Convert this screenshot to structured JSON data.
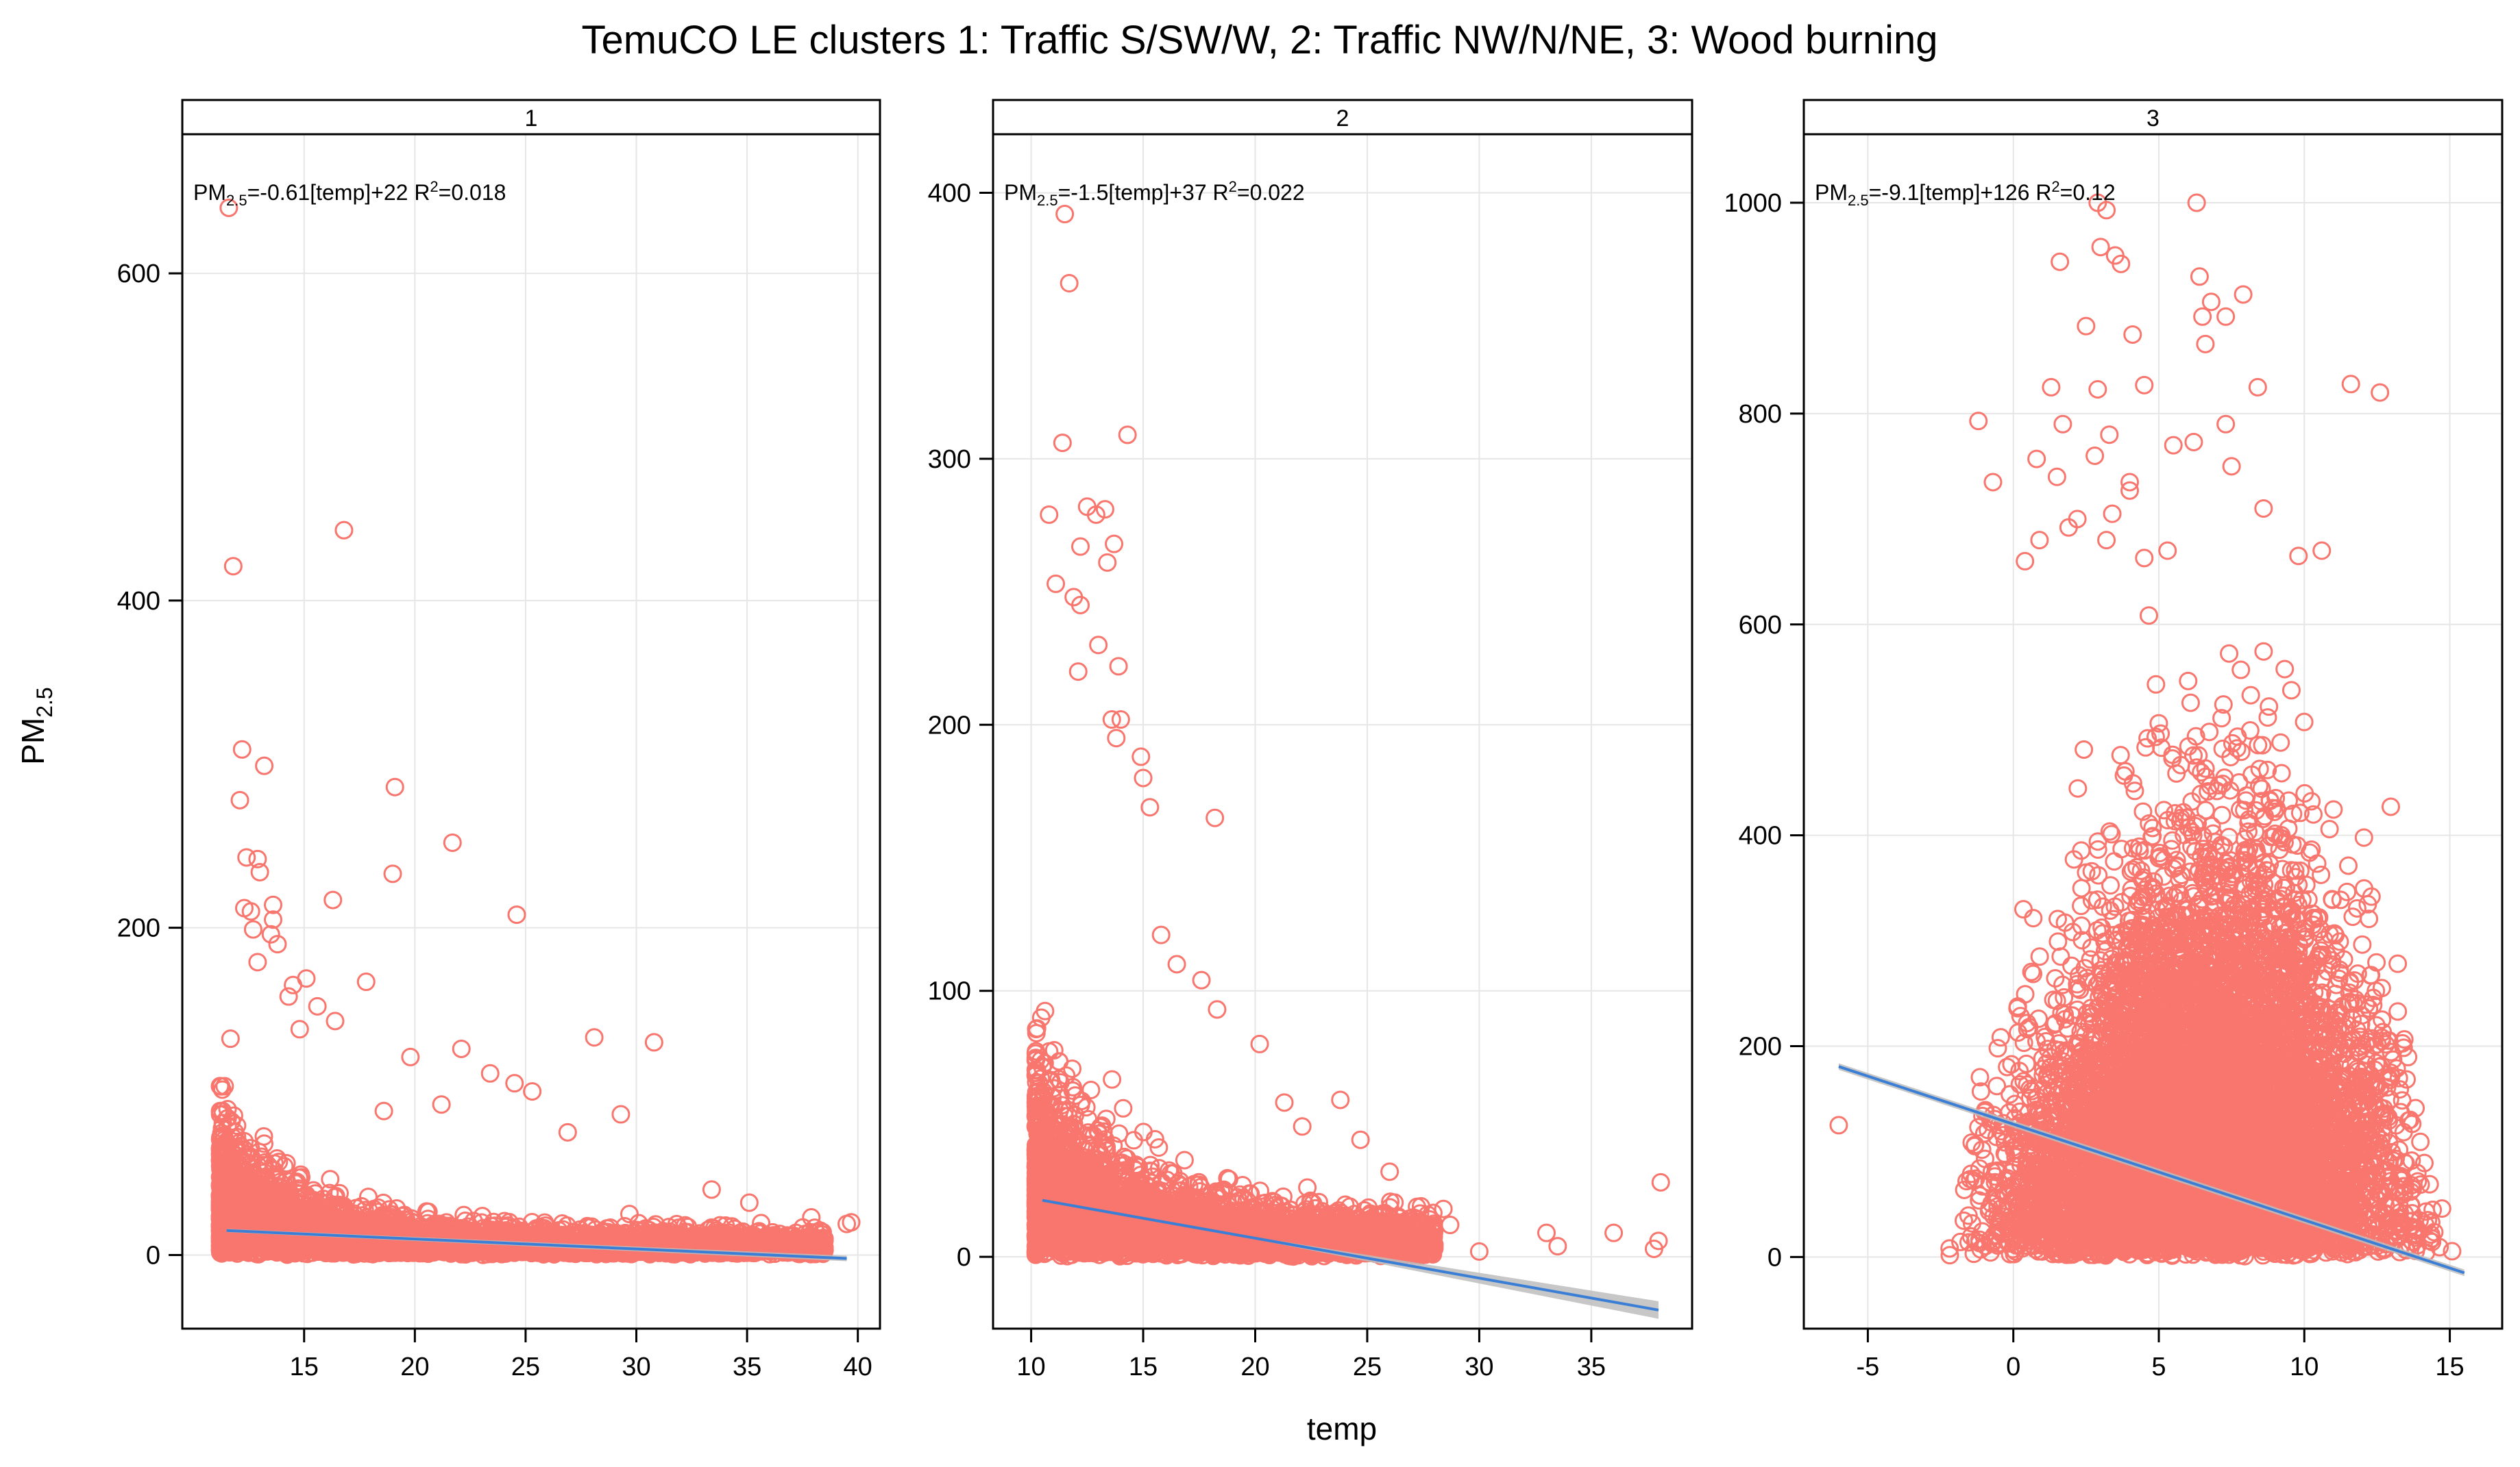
{
  "chart_data": {
    "type": "scatter",
    "title": "TemuCO LE clusters 1: Traffic S/SW/W, 2: Traffic NW/N/NE, 3: Wood burning",
    "xlabel": "temp",
    "ylabel_main": "PM",
    "ylabel_sub": "2.5",
    "point_color": "#f8766d",
    "line_color": "#3a7fd5",
    "band_color": "#bdbdbd",
    "panels": [
      {
        "strip": "1",
        "eq_prefix": "PM",
        "eq_sub": "2.5",
        "eq_body": "=-0.61[temp]+22 R",
        "eq_sup": "2",
        "eq_tail": "=0.018",
        "xlim": [
          9.5,
          41
        ],
        "ylim": [
          -45,
          685
        ],
        "xticks": [
          15,
          20,
          25,
          30,
          35,
          40
        ],
        "yticks": [
          0,
          200,
          400,
          600
        ],
        "xgrid": [
          15,
          20,
          25,
          30,
          35,
          40
        ],
        "ygrid": [
          0,
          200,
          400,
          600
        ],
        "fit": {
          "slope": -0.61,
          "intercept": 22,
          "x0": 11.5,
          "x1": 39.5,
          "band_x0": 11.5,
          "band_w0": 1.5,
          "band_w1": 2.5
        },
        "cloud": {
          "xmin": 11.2,
          "xmax": 38.5,
          "n": 5000,
          "decay": 0.28,
          "base": 35,
          "spread": 18
        },
        "outliers": [
          [
            11.6,
            640
          ],
          [
            11.8,
            421
          ],
          [
            16.8,
            443
          ],
          [
            12.2,
            309
          ],
          [
            13.2,
            299
          ],
          [
            12.1,
            278
          ],
          [
            19.1,
            286
          ],
          [
            21.7,
            252
          ],
          [
            19.0,
            233
          ],
          [
            12.4,
            243
          ],
          [
            12.9,
            242
          ],
          [
            13.0,
            234
          ],
          [
            24.6,
            208
          ],
          [
            16.3,
            217
          ],
          [
            13.6,
            214
          ],
          [
            13.6,
            205
          ],
          [
            12.3,
            212
          ],
          [
            12.6,
            210
          ],
          [
            12.7,
            199
          ],
          [
            13.5,
            196
          ],
          [
            13.8,
            190
          ],
          [
            12.9,
            179
          ],
          [
            14.5,
            165
          ],
          [
            15.1,
            169
          ],
          [
            17.8,
            167
          ],
          [
            14.3,
            158
          ],
          [
            15.6,
            152
          ],
          [
            16.4,
            143
          ],
          [
            14.8,
            138
          ],
          [
            28.1,
            133
          ],
          [
            30.8,
            130
          ],
          [
            22.1,
            126
          ],
          [
            19.8,
            121
          ],
          [
            24.5,
            105
          ],
          [
            25.3,
            100
          ],
          [
            23.4,
            111
          ],
          [
            18.6,
            88
          ],
          [
            21.2,
            92
          ],
          [
            26.9,
            75
          ],
          [
            29.3,
            86
          ],
          [
            33.4,
            40
          ],
          [
            35.1,
            32
          ],
          [
            36.8,
            12
          ],
          [
            37.9,
            23
          ],
          [
            39.5,
            19
          ],
          [
            39.7,
            20
          ],
          [
            38.2,
            8
          ],
          [
            37.6,
            6
          ],
          [
            34.6,
            4
          ]
        ]
      },
      {
        "strip": "2",
        "eq_prefix": "PM",
        "eq_sub": "2.5",
        "eq_body": "=-1.5[temp]+37 R",
        "eq_sup": "2",
        "eq_tail": "=0.022",
        "xlim": [
          8.3,
          39.5
        ],
        "ylim": [
          -27,
          422
        ],
        "xticks": [
          10,
          15,
          20,
          25,
          30,
          35
        ],
        "yticks": [
          0,
          100,
          200,
          300,
          400
        ],
        "xgrid": [
          10,
          15,
          20,
          25,
          30,
          35
        ],
        "ygrid": [
          0,
          100,
          200,
          300,
          400
        ],
        "fit": {
          "slope": -1.5,
          "intercept": 37,
          "x0": 10.5,
          "x1": 38,
          "band_x0": 20,
          "band_w0": 1,
          "band_w1": 8
        },
        "cloud": {
          "xmin": 10.2,
          "xmax": 28,
          "n": 4500,
          "decay": 0.25,
          "base": 30,
          "spread": 16
        },
        "outliers": [
          [
            11.5,
            392
          ],
          [
            11.7,
            366
          ],
          [
            11.4,
            306
          ],
          [
            14.3,
            309
          ],
          [
            10.8,
            279
          ],
          [
            12.5,
            282
          ],
          [
            12.9,
            279
          ],
          [
            13.3,
            281
          ],
          [
            12.2,
            267
          ],
          [
            13.7,
            268
          ],
          [
            13.4,
            261
          ],
          [
            11.9,
            248
          ],
          [
            11.1,
            253
          ],
          [
            12.2,
            245
          ],
          [
            13.0,
            230
          ],
          [
            13.9,
            222
          ],
          [
            14.0,
            202
          ],
          [
            13.6,
            202
          ],
          [
            12.1,
            220
          ],
          [
            13.8,
            195
          ],
          [
            14.9,
            188
          ],
          [
            15.0,
            180
          ],
          [
            18.2,
            165
          ],
          [
            15.3,
            169
          ],
          [
            15.8,
            121
          ],
          [
            16.5,
            110
          ],
          [
            17.6,
            104
          ],
          [
            18.3,
            93
          ],
          [
            20.2,
            80
          ],
          [
            21.3,
            58
          ],
          [
            22.1,
            49
          ],
          [
            23.8,
            59
          ],
          [
            24.7,
            44
          ],
          [
            26.0,
            32
          ],
          [
            27.4,
            19
          ],
          [
            28.4,
            18
          ],
          [
            28.7,
            12
          ],
          [
            30.0,
            2
          ],
          [
            33.0,
            9
          ],
          [
            33.5,
            4
          ],
          [
            36.0,
            9
          ],
          [
            37.8,
            3
          ],
          [
            38.0,
            6
          ],
          [
            38.1,
            28
          ]
        ]
      },
      {
        "strip": "3",
        "eq_prefix": "PM",
        "eq_sub": "2.5",
        "eq_body": "=-9.1[temp]+126 R",
        "eq_sup": "2",
        "eq_tail": "=0.12",
        "xlim": [
          -7.2,
          16.8
        ],
        "ylim": [
          -68,
          1065
        ],
        "xticks": [
          -5,
          0,
          5,
          10,
          15
        ],
        "yticks": [
          0,
          200,
          400,
          600,
          800,
          1000
        ],
        "xgrid": [
          -5,
          0,
          5,
          10,
          15
        ],
        "ygrid": [
          0,
          200,
          400,
          600,
          800,
          1000
        ],
        "fit": {
          "slope": -9.1,
          "intercept": 126,
          "x0": -6,
          "x1": 15.5,
          "band_x0": -6,
          "band_w0": 3,
          "band_w1": 3
        },
        "cloud": {
          "xmin": -2.5,
          "xmax": 15.5,
          "n": 9000,
          "decay": 0,
          "base": 160,
          "spread": 120
        },
        "outliers": [
          [
            -6.0,
            125
          ],
          [
            2.9,
            1000
          ],
          [
            6.3,
            1000
          ],
          [
            3.2,
            993
          ],
          [
            3.0,
            958
          ],
          [
            3.5,
            950
          ],
          [
            1.6,
            944
          ],
          [
            6.4,
            930
          ],
          [
            3.7,
            942
          ],
          [
            2.5,
            883
          ],
          [
            6.5,
            892
          ],
          [
            6.8,
            906
          ],
          [
            7.9,
            913
          ],
          [
            4.1,
            875
          ],
          [
            6.6,
            866
          ],
          [
            7.3,
            892
          ],
          [
            11.6,
            828
          ],
          [
            12.6,
            820
          ],
          [
            4.5,
            827
          ],
          [
            6.2,
            773
          ],
          [
            7.3,
            790
          ],
          [
            8.4,
            825
          ],
          [
            2.9,
            823
          ],
          [
            1.3,
            825
          ],
          [
            1.7,
            790
          ],
          [
            -1.2,
            793
          ],
          [
            3.3,
            780
          ],
          [
            5.5,
            770
          ],
          [
            7.5,
            750
          ],
          [
            0.8,
            757
          ],
          [
            2.8,
            760
          ],
          [
            1.5,
            740
          ],
          [
            -0.7,
            735
          ],
          [
            4.0,
            735
          ],
          [
            4.0,
            727
          ],
          [
            2.2,
            700
          ],
          [
            3.4,
            705
          ],
          [
            1.9,
            692
          ],
          [
            8.6,
            710
          ],
          [
            3.2,
            680
          ],
          [
            5.3,
            670
          ],
          [
            4.5,
            663
          ],
          [
            0.9,
            680
          ],
          [
            0.4,
            660
          ],
          [
            10.6,
            670
          ],
          [
            9.8,
            665
          ]
        ]
      }
    ]
  }
}
